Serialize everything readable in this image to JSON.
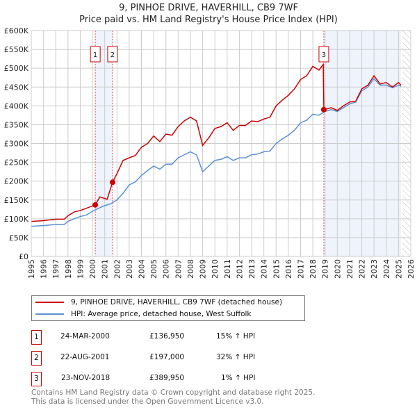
{
  "chart_data": {
    "type": "line",
    "title": "9, PINHOE DRIVE, HAVERHILL, CB9 7WF",
    "subtitle": "Price paid vs. HM Land Registry's House Price Index (HPI)",
    "xlim": [
      1995,
      2026
    ],
    "ylim": [
      0,
      600000
    ],
    "x_ticks": [
      "1995",
      "1996",
      "1997",
      "1998",
      "1999",
      "2000",
      "2001",
      "2002",
      "2003",
      "2004",
      "2005",
      "2006",
      "2007",
      "2008",
      "2009",
      "2010",
      "2011",
      "2012",
      "2013",
      "2014",
      "2015",
      "2016",
      "2017",
      "2018",
      "2019",
      "2020",
      "2021",
      "2022",
      "2023",
      "2024",
      "2025",
      "2026"
    ],
    "y_ticks": [
      "£0",
      "£50K",
      "£100K",
      "£150K",
      "£200K",
      "£250K",
      "£300K",
      "£350K",
      "£400K",
      "£450K",
      "£500K",
      "£550K",
      "£600K"
    ],
    "grid": true,
    "series": [
      {
        "name": "9, PINHOE DRIVE, HAVERHILL, CB9 7WF (detached house)",
        "color": "#cc0000",
        "x": [
          1995,
          1996,
          1997,
          1997.7,
          1998,
          1998.5,
          1999,
          1999.5,
          2000.23,
          2000.6,
          2001.2,
          2001.64,
          2002,
          2002.5,
          2003,
          2003.5,
          2004,
          2004.5,
          2005,
          2005.5,
          2006,
          2006.5,
          2007,
          2007.5,
          2008,
          2008.5,
          2009,
          2009.5,
          2010,
          2010.5,
          2011,
          2011.5,
          2012,
          2012.5,
          2013,
          2013.5,
          2014,
          2014.5,
          2015,
          2015.5,
          2016,
          2016.5,
          2017,
          2017.5,
          2018,
          2018.5,
          2018.85,
          2018.9,
          2019.5,
          2020,
          2020.5,
          2021,
          2021.5,
          2022,
          2022.5,
          2023,
          2023.5,
          2024,
          2024.5,
          2025,
          2025.2
        ],
        "y": [
          93000,
          95000,
          99000,
          99000,
          108000,
          118000,
          122000,
          128000,
          136950,
          158000,
          152000,
          197000,
          220000,
          255000,
          262000,
          268000,
          290000,
          300000,
          320000,
          305000,
          325000,
          322000,
          345000,
          360000,
          370000,
          360000,
          295000,
          315000,
          340000,
          345000,
          355000,
          335000,
          348000,
          348000,
          360000,
          358000,
          365000,
          370000,
          400000,
          415000,
          428000,
          445000,
          470000,
          480000,
          505000,
          495000,
          510000,
          389950,
          395000,
          388000,
          400000,
          410000,
          412000,
          445000,
          455000,
          480000,
          458000,
          462000,
          450000,
          462000,
          455000
        ]
      },
      {
        "name": "HPI: Average price, detached house, West Suffolk",
        "color": "#5b8fd4",
        "x": [
          1995,
          1996,
          1997,
          1997.7,
          1998,
          1998.5,
          1999,
          1999.5,
          2000,
          2000.5,
          2001,
          2001.5,
          2002,
          2002.5,
          2003,
          2003.5,
          2004,
          2004.5,
          2005,
          2005.5,
          2006,
          2006.5,
          2007,
          2007.5,
          2008,
          2008.5,
          2009,
          2009.5,
          2010,
          2010.5,
          2011,
          2011.5,
          2012,
          2012.5,
          2013,
          2013.5,
          2014,
          2014.5,
          2015,
          2015.5,
          2016,
          2016.5,
          2017,
          2017.5,
          2018,
          2018.5,
          2019,
          2019.5,
          2020,
          2020.5,
          2021,
          2021.5,
          2022,
          2022.5,
          2023,
          2023.5,
          2024,
          2024.5,
          2025,
          2025.2
        ],
        "y": [
          80000,
          82000,
          85000,
          85000,
          93000,
          100000,
          106000,
          110000,
          120000,
          128000,
          135000,
          140000,
          150000,
          168000,
          190000,
          198000,
          215000,
          228000,
          240000,
          232000,
          245000,
          245000,
          262000,
          270000,
          278000,
          270000,
          225000,
          240000,
          255000,
          258000,
          265000,
          255000,
          262000,
          262000,
          270000,
          272000,
          278000,
          280000,
          300000,
          312000,
          322000,
          335000,
          355000,
          362000,
          378000,
          375000,
          385000,
          390000,
          385000,
          395000,
          405000,
          410000,
          440000,
          450000,
          472000,
          455000,
          455000,
          448000,
          455000,
          452000
        ]
      }
    ],
    "shaded_ranges": [
      [
        2000.23,
        2001.64
      ],
      [
        2018.9,
        2025.2
      ]
    ],
    "forecast_hatch_from": 2025.3,
    "sales": [
      {
        "label": "1",
        "date": "24-MAR-2000",
        "x": 2000.23,
        "price": "£136,950",
        "value": 136950,
        "hpi": "15% ↑ HPI"
      },
      {
        "label": "2",
        "date": "22-AUG-2001",
        "x": 2001.64,
        "price": "£197,000",
        "value": 197000,
        "hpi": "32% ↑ HPI"
      },
      {
        "label": "3",
        "date": "23-NOV-2018",
        "x": 2018.9,
        "price": "£389,950",
        "value": 389950,
        "hpi": "1% ↑ HPI"
      }
    ]
  },
  "footer": {
    "line1": "Contains HM Land Registry data © Crown copyright and database right 2025.",
    "line2": "This data is licensed under the Open Government Licence v3.0."
  }
}
